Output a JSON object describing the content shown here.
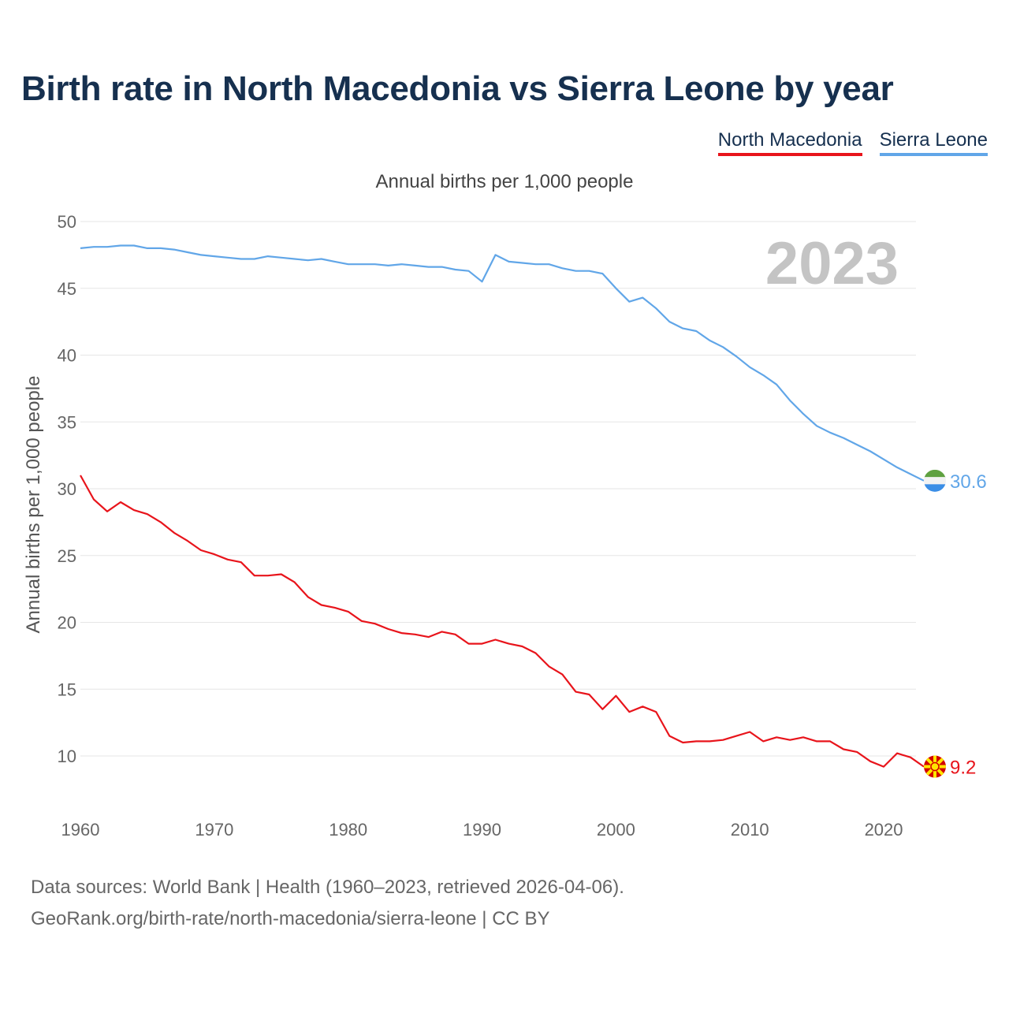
{
  "title": "Birth rate in North Macedonia vs Sierra Leone by year",
  "legend": {
    "north_macedonia": "North Macedonia",
    "sierra_leone": "Sierra Leone"
  },
  "subtitle": "Annual births per 1,000 people",
  "footer": {
    "line1": "Data sources: World Bank | Health (1960–2023, retrieved 2026-04-06).",
    "line2": "GeoRank.org/birth-rate/north-macedonia/sierra-leone | CC BY"
  },
  "colors": {
    "north_macedonia": "#e8141b",
    "sierra_leone": "#61a6e8",
    "grid": "#e6e6e6",
    "title": "#16304f"
  },
  "chart_data": {
    "type": "line",
    "title": "Birth rate in North Macedonia vs Sierra Leone by year",
    "xlabel": "",
    "ylabel": "Annual births per 1,000 people",
    "xlim": [
      1960,
      2023
    ],
    "ylim": [
      6.7,
      51
    ],
    "x_ticks": [
      1960,
      1970,
      1980,
      1990,
      2000,
      2010,
      2020
    ],
    "y_ticks": [
      10,
      15,
      20,
      25,
      30,
      35,
      40,
      45,
      50
    ],
    "highlight_year": "2023",
    "grid": true,
    "legend_position": "top-right",
    "x": [
      1960,
      1961,
      1962,
      1963,
      1964,
      1965,
      1966,
      1967,
      1968,
      1969,
      1970,
      1971,
      1972,
      1973,
      1974,
      1975,
      1976,
      1977,
      1978,
      1979,
      1980,
      1981,
      1982,
      1983,
      1984,
      1985,
      1986,
      1987,
      1988,
      1989,
      1990,
      1991,
      1992,
      1993,
      1994,
      1995,
      1996,
      1997,
      1998,
      1999,
      2000,
      2001,
      2002,
      2003,
      2004,
      2005,
      2006,
      2007,
      2008,
      2009,
      2010,
      2011,
      2012,
      2013,
      2014,
      2015,
      2016,
      2017,
      2018,
      2019,
      2020,
      2021,
      2022,
      2023
    ],
    "series": [
      {
        "name": "North Macedonia",
        "color": "#e8141b",
        "end_label": "9.2",
        "values": [
          31.0,
          29.2,
          28.3,
          29.0,
          28.4,
          28.1,
          27.5,
          26.7,
          26.1,
          25.4,
          25.1,
          24.7,
          24.5,
          23.5,
          23.5,
          23.6,
          23.0,
          21.9,
          21.3,
          21.1,
          20.8,
          20.1,
          19.9,
          19.5,
          19.2,
          19.1,
          18.9,
          19.3,
          19.1,
          18.4,
          18.4,
          18.7,
          18.4,
          18.2,
          17.7,
          16.7,
          16.1,
          14.8,
          14.6,
          13.5,
          14.5,
          13.3,
          13.7,
          13.3,
          11.5,
          11.0,
          11.1,
          11.1,
          11.2,
          11.5,
          11.8,
          11.1,
          11.4,
          11.2,
          11.4,
          11.1,
          11.1,
          10.5,
          10.3,
          9.6,
          9.2,
          10.2,
          9.9,
          9.2
        ]
      },
      {
        "name": "Sierra Leone",
        "color": "#61a6e8",
        "end_label": "30.6",
        "values": [
          48.0,
          48.1,
          48.1,
          48.2,
          48.2,
          48.0,
          48.0,
          47.9,
          47.7,
          47.5,
          47.4,
          47.3,
          47.2,
          47.2,
          47.4,
          47.3,
          47.2,
          47.1,
          47.2,
          47.0,
          46.8,
          46.8,
          46.8,
          46.7,
          46.8,
          46.7,
          46.6,
          46.6,
          46.4,
          46.3,
          45.5,
          47.5,
          47.0,
          46.9,
          46.8,
          46.8,
          46.5,
          46.3,
          46.3,
          46.1,
          45.0,
          44.0,
          44.3,
          43.5,
          42.5,
          42.0,
          41.8,
          41.1,
          40.6,
          39.9,
          39.1,
          38.5,
          37.8,
          36.6,
          35.6,
          34.7,
          34.2,
          33.8,
          33.3,
          32.8,
          32.2,
          31.6,
          31.1,
          30.6
        ]
      }
    ]
  }
}
